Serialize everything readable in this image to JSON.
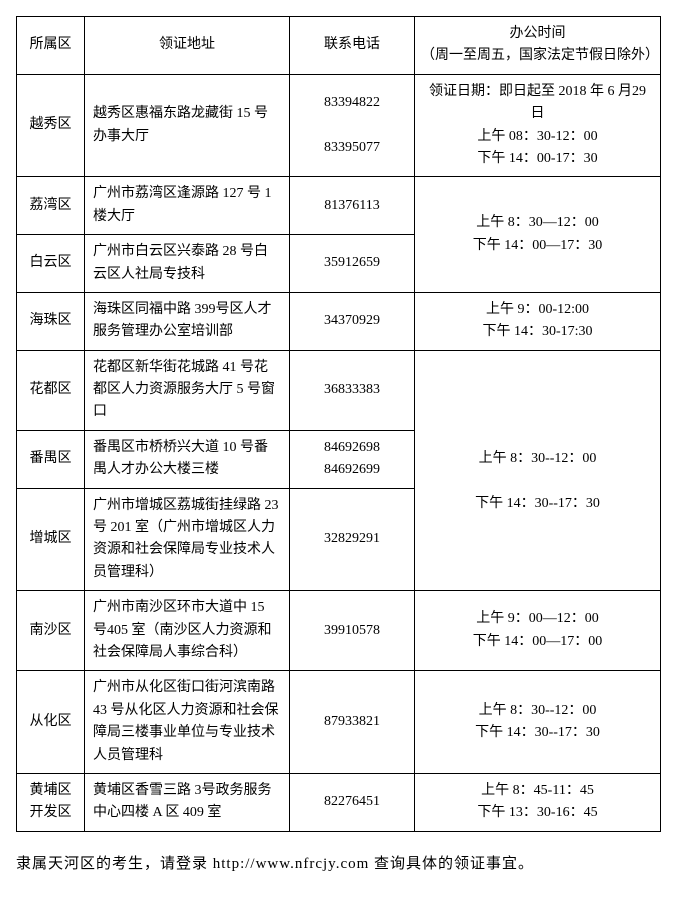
{
  "header": {
    "district": "所属区",
    "address": "领证地址",
    "phone": "联系电话",
    "hours_line1": "办公时间",
    "hours_line2": "（周一至周五，国家法定节假日除外）"
  },
  "rows": [
    {
      "district": "越秀区",
      "address": "越秀区惠福东路龙藏街 15 号办事大厅",
      "phone_line1": "83394822",
      "phone_line2": "83395077",
      "hours_line1": "领证日期：即日起至 2018 年 6 月29 日",
      "hours_line2": "上午 08：30-12：00",
      "hours_line3": "下午 14：00-17：30"
    },
    {
      "district": "荔湾区",
      "address": "广州市荔湾区逢源路 127 号 1 楼大厅",
      "phone": "81376113"
    },
    {
      "district": "白云区",
      "address": "广州市白云区兴泰路 28 号白云区人社局专技科",
      "phone": "35912659"
    },
    {
      "district": "海珠区",
      "address": "海珠区同福中路 399号区人才服务管理办公室培训部",
      "phone": "34370929",
      "hours_line1": "上午 9：00-12:00",
      "hours_line2": "下午 14：30-17:30"
    },
    {
      "district": "花都区",
      "address": "花都区新华街花城路 41 号花都区人力资源服务大厅 5 号窗口",
      "phone": "36833383"
    },
    {
      "district": "番禺区",
      "address": "番禺区市桥桥兴大道 10 号番禺人才办公大楼三楼",
      "phone_line1": "84692698",
      "phone_line2": "84692699"
    },
    {
      "district": "增城区",
      "address": "广州市增城区荔城街挂绿路 23号 201 室（广州市增城区人力资源和社会保障局专业技术人员管理科）",
      "phone": "32829291"
    },
    {
      "district": "南沙区",
      "address": "广州市南沙区环市大道中 15 号405 室（南沙区人力资源和社会保障局人事综合科）",
      "phone": "39910578",
      "hours_line1": "上午 9：00—12：00",
      "hours_line2": "下午 14：00—17：00"
    },
    {
      "district": "从化区",
      "address": "广州市从化区街口街河滨南路43 号从化区人力资源和社会保障局三楼事业单位与专业技术人员管理科",
      "phone": "87933821",
      "hours_line1": "上午 8：30--12：00",
      "hours_line2": "下午 14：30--17：30"
    },
    {
      "district": "黄埔区开发区",
      "address": "黄埔区香雪三路 3号政务服务中心四楼 A 区 409 室",
      "phone": "82276451",
      "hours_line1": "上午 8：45-11：45",
      "hours_line2": "下午 13：30-16：45"
    }
  ],
  "merged_hours_1": {
    "line1": "上午 8：30—12：00",
    "line2": "下午 14：00—17：30"
  },
  "merged_hours_2": {
    "line1": "上午 8：30--12：00",
    "line2": "下午 14：30--17：30"
  },
  "footer_note": "隶属天河区的考生，请登录 http://www.nfrcjy.com 查询具体的领证事宜。"
}
